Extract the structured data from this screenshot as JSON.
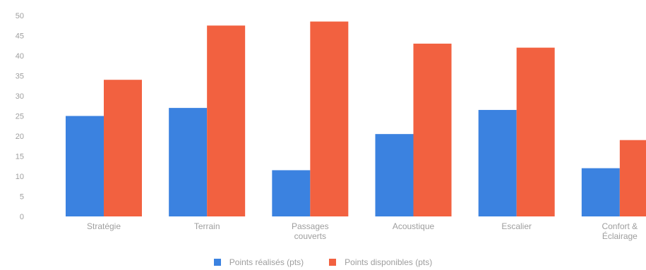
{
  "chart_data": {
    "type": "bar",
    "categories": [
      "Stratégie",
      "Terrain",
      "Passages couverts",
      "Acoustique",
      "Escalier",
      "Confort & Éclairage"
    ],
    "category_lines": [
      [
        "Stratégie"
      ],
      [
        "Terrain"
      ],
      [
        "Passages",
        "couverts"
      ],
      [
        "Acoustique"
      ],
      [
        "Escalier"
      ],
      [
        "Confort &",
        "Éclairage"
      ]
    ],
    "series": [
      {
        "name": "Points réalisés (pts)",
        "color": "#3b82e0",
        "values": [
          25,
          27,
          11.5,
          20.5,
          26.5,
          12
        ]
      },
      {
        "name": "Points disponibles (pts)",
        "color": "#f26140",
        "values": [
          34,
          47.5,
          48.5,
          43,
          42,
          19
        ]
      }
    ],
    "ylim": [
      0,
      50
    ],
    "yticks": [
      0,
      5,
      10,
      15,
      20,
      25,
      30,
      35,
      40,
      45,
      50
    ],
    "grid": false,
    "legend_position": "bottom"
  }
}
